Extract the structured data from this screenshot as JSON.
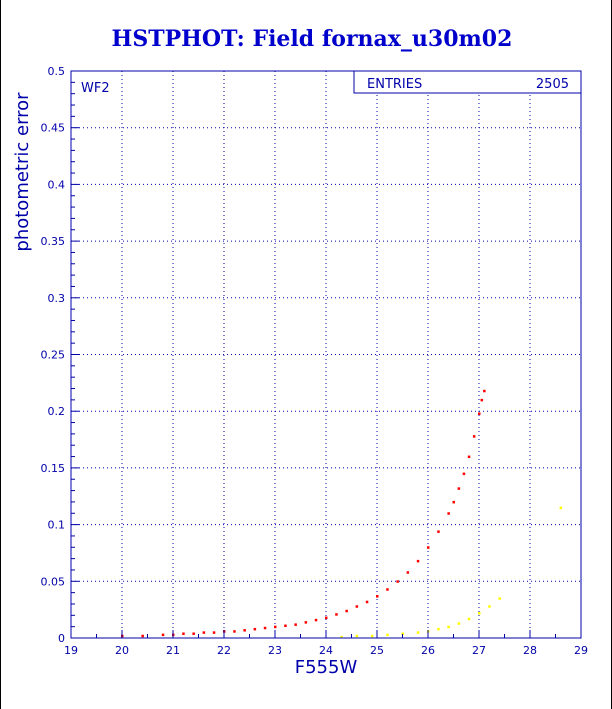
{
  "chart_data": {
    "type": "scatter",
    "title": "HSTPHOT: Field fornax_u30m02",
    "xlabel": "F555W",
    "ylabel": "photometric error",
    "panel_label": "WF2",
    "stats_box": {
      "label": "ENTRIES",
      "value": "2505"
    },
    "xlim": [
      19,
      29
    ],
    "ylim": [
      0,
      0.5
    ],
    "x_ticks": [
      19,
      20,
      21,
      22,
      23,
      24,
      25,
      26,
      27,
      28,
      29
    ],
    "y_ticks": [
      0,
      0.05,
      0.1,
      0.15,
      0.2,
      0.25,
      0.3,
      0.35,
      0.4,
      0.45,
      0.5
    ],
    "x_tick_labels": [
      "19",
      "20",
      "21",
      "22",
      "23",
      "24",
      "25",
      "26",
      "27",
      "28",
      "29"
    ],
    "y_tick_labels": [
      "0",
      "0.05",
      "0.1",
      "0.15",
      "0.2",
      "0.25",
      "0.3",
      "0.35",
      "0.4",
      "0.45",
      "0.5"
    ],
    "grid": true,
    "series": [
      {
        "color": "#ff0000",
        "points": [
          [
            20.0,
            0.002
          ],
          [
            20.4,
            0.002
          ],
          [
            20.8,
            0.003
          ],
          [
            21.0,
            0.003
          ],
          [
            21.2,
            0.004
          ],
          [
            21.4,
            0.004
          ],
          [
            21.6,
            0.005
          ],
          [
            21.8,
            0.005
          ],
          [
            22.0,
            0.006
          ],
          [
            22.2,
            0.006
          ],
          [
            22.4,
            0.007
          ],
          [
            22.6,
            0.008
          ],
          [
            22.8,
            0.009
          ],
          [
            23.0,
            0.01
          ],
          [
            23.2,
            0.011
          ],
          [
            23.4,
            0.012
          ],
          [
            23.6,
            0.014
          ],
          [
            23.8,
            0.016
          ],
          [
            24.0,
            0.018
          ],
          [
            24.2,
            0.021
          ],
          [
            24.4,
            0.024
          ],
          [
            24.6,
            0.028
          ],
          [
            24.8,
            0.032
          ],
          [
            25.0,
            0.037
          ],
          [
            25.2,
            0.043
          ],
          [
            25.4,
            0.05
          ],
          [
            25.6,
            0.058
          ],
          [
            25.8,
            0.068
          ],
          [
            26.0,
            0.08
          ],
          [
            26.2,
            0.094
          ],
          [
            26.4,
            0.11
          ],
          [
            26.5,
            0.12
          ],
          [
            26.6,
            0.132
          ],
          [
            26.7,
            0.145
          ],
          [
            26.8,
            0.16
          ],
          [
            26.9,
            0.178
          ],
          [
            27.0,
            0.198
          ],
          [
            27.05,
            0.21
          ],
          [
            27.1,
            0.218
          ]
        ]
      },
      {
        "color": "#ffff00",
        "points": [
          [
            24.3,
            0.001
          ],
          [
            24.6,
            0.002
          ],
          [
            24.9,
            0.002
          ],
          [
            25.2,
            0.003
          ],
          [
            25.5,
            0.004
          ],
          [
            25.8,
            0.005
          ],
          [
            26.0,
            0.006
          ],
          [
            26.2,
            0.008
          ],
          [
            26.4,
            0.01
          ],
          [
            26.6,
            0.013
          ],
          [
            26.8,
            0.017
          ],
          [
            27.0,
            0.022
          ],
          [
            27.2,
            0.028
          ],
          [
            27.4,
            0.035
          ],
          [
            28.6,
            0.115
          ]
        ]
      }
    ]
  }
}
